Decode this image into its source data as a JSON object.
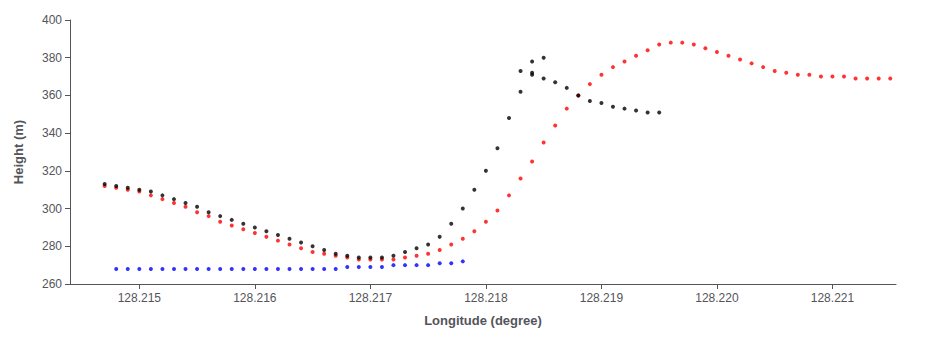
{
  "chart_data": {
    "type": "scatter",
    "xlabel": "Longitude (degree)",
    "ylabel": "Height (m)",
    "xlim": [
      128.2144,
      128.22155
    ],
    "ylim": [
      260,
      400
    ],
    "xticks": [
      128.215,
      128.216,
      128.217,
      128.218,
      128.219,
      {
        "value": 128.22,
        "label": "128.220"
      },
      128.221
    ],
    "yticks": [
      260,
      280,
      300,
      320,
      340,
      360,
      380,
      400
    ],
    "grid": false,
    "marker": "circle",
    "series": [
      {
        "color": "black",
        "x": [
          128.2147,
          128.2148,
          128.2149,
          128.215,
          128.2151,
          128.2152,
          128.2153,
          128.2154,
          128.2155,
          128.2156,
          128.2157,
          128.2158,
          128.2159,
          128.216,
          128.2161,
          128.2162,
          128.2163,
          128.2164,
          128.2165,
          128.2166,
          128.2167,
          128.2168,
          128.2169,
          128.217,
          128.2171,
          128.2172,
          128.2173,
          128.2174,
          128.2175,
          128.2176,
          128.2177,
          128.2178,
          128.2179,
          128.218,
          128.2181,
          128.2182,
          128.2183,
          128.2184,
          128.2185,
          128.2184,
          128.2183,
          128.2184,
          128.2185,
          128.2186,
          128.2187,
          128.2188,
          128.2189,
          128.219,
          128.2191,
          128.2192,
          128.2193,
          128.2194,
          128.2195
        ],
        "values": [
          313,
          312,
          311,
          310,
          309,
          307,
          305,
          303,
          301,
          298,
          296,
          294,
          292,
          290,
          288,
          286,
          284,
          282,
          280,
          278,
          276,
          275,
          274,
          274,
          274,
          275,
          277,
          279,
          281,
          285,
          292,
          300,
          310,
          320,
          332,
          348,
          362,
          372,
          380,
          378,
          373,
          371,
          369,
          367,
          364,
          360,
          357,
          356,
          354,
          353,
          352,
          351,
          351
        ]
      },
      {
        "color": "blue",
        "x": [
          128.2148,
          128.2149,
          128.215,
          128.2151,
          128.2152,
          128.2153,
          128.2154,
          128.2155,
          128.2156,
          128.2157,
          128.2158,
          128.2159,
          128.216,
          128.2161,
          128.2162,
          128.2163,
          128.2164,
          128.2165,
          128.2166,
          128.2167,
          128.2168,
          128.2169,
          128.217,
          128.2171,
          128.2172,
          128.2173,
          128.2174,
          128.2175,
          128.2176,
          128.2177,
          128.2178
        ],
        "values": [
          268,
          268,
          268,
          268,
          268,
          268,
          268,
          268,
          268,
          268,
          268,
          268,
          268,
          268,
          268,
          268,
          268,
          268,
          268,
          268,
          269,
          269,
          269,
          269,
          270,
          270,
          270,
          270,
          271,
          271,
          272
        ]
      },
      {
        "color": "red",
        "x": [
          128.2147,
          128.2148,
          128.2149,
          128.215,
          128.2151,
          128.2152,
          128.2153,
          128.2154,
          128.2155,
          128.2156,
          128.2157,
          128.2158,
          128.2159,
          128.216,
          128.2161,
          128.2162,
          128.2163,
          128.2164,
          128.2165,
          128.2166,
          128.2167,
          128.2168,
          128.2169,
          128.217,
          128.2171,
          128.2172,
          128.2173,
          128.2174,
          128.2175,
          128.2176,
          128.2177,
          128.2178,
          128.2179,
          128.218,
          128.2181,
          128.2182,
          128.2183,
          128.2184,
          128.2185,
          128.2186,
          128.2187,
          128.2188,
          128.2189,
          128.219,
          128.2191,
          128.2192,
          128.2193,
          128.2194,
          128.2195,
          128.2196,
          128.2197,
          128.2198,
          128.2199,
          128.22,
          128.2201,
          128.2202,
          128.2203,
          128.2204,
          128.2205,
          128.2206,
          128.2207,
          128.2208,
          128.2209,
          128.221,
          128.2211,
          128.2212,
          128.2213,
          128.2214,
          128.2215
        ],
        "values": [
          312,
          311,
          310,
          309,
          307,
          305,
          303,
          301,
          298,
          296,
          293,
          291,
          289,
          287,
          285,
          283,
          281,
          279,
          277,
          276,
          275,
          274,
          273,
          273,
          273,
          273,
          274,
          275,
          276,
          278,
          281,
          284,
          288,
          293,
          299,
          307,
          316,
          325,
          335,
          344,
          353,
          360,
          366,
          371,
          375,
          378,
          381,
          384,
          387,
          388,
          388,
          387,
          385,
          383,
          381,
          379,
          377,
          375,
          373,
          372,
          371,
          371,
          370,
          370,
          370,
          369,
          369,
          369,
          369
        ]
      }
    ]
  }
}
